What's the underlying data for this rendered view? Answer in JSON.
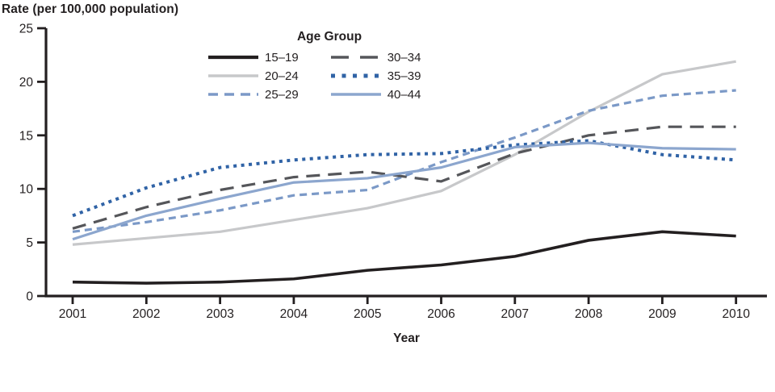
{
  "chart_data": {
    "type": "line",
    "title": "Rate (per 100,000 population)",
    "xlabel": "Year",
    "ylabel": "Rate (per 100,000 population)",
    "legend_title": "Age Group",
    "legend_position": "top-center",
    "grid": false,
    "x": [
      2001,
      2002,
      2003,
      2004,
      2005,
      2006,
      2007,
      2008,
      2009,
      2010
    ],
    "ylim": [
      0,
      25
    ],
    "yticks": [
      0,
      5,
      10,
      15,
      20,
      25
    ],
    "series": [
      {
        "name": "15–19",
        "style": "solid",
        "color": "#231f20",
        "values": [
          1.3,
          1.2,
          1.3,
          1.6,
          2.4,
          2.9,
          3.7,
          5.2,
          6.0,
          5.6
        ]
      },
      {
        "name": "20–24",
        "style": "solid",
        "color": "#c7c8ca",
        "values": [
          4.8,
          5.4,
          6.0,
          7.1,
          8.2,
          9.8,
          13.2,
          17.2,
          20.7,
          21.9
        ]
      },
      {
        "name": "25–29",
        "style": "dashed",
        "color": "#7b99c7",
        "values": [
          6.0,
          6.9,
          8.0,
          9.4,
          9.9,
          12.5,
          14.8,
          17.3,
          18.7,
          19.2
        ]
      },
      {
        "name": "30–34",
        "style": "long-dashed",
        "color": "#55565a",
        "values": [
          6.3,
          8.3,
          9.9,
          11.1,
          11.6,
          10.7,
          13.3,
          15.0,
          15.8,
          15.8
        ]
      },
      {
        "name": "35–39",
        "style": "dotted",
        "color": "#3063a6",
        "values": [
          7.5,
          10.1,
          12.0,
          12.7,
          13.2,
          13.3,
          14.1,
          14.5,
          13.2,
          12.7
        ]
      },
      {
        "name": "40–44",
        "style": "solid",
        "color": "#8ca6ce",
        "values": [
          5.3,
          7.5,
          9.1,
          10.6,
          11.0,
          12.0,
          13.9,
          14.3,
          13.8,
          13.7
        ]
      }
    ],
    "legend_columns": [
      [
        "15–19",
        "20–24",
        "25–29"
      ],
      [
        "30–34",
        "35–39",
        "40–44"
      ]
    ],
    "axis_color": "#231f20"
  }
}
